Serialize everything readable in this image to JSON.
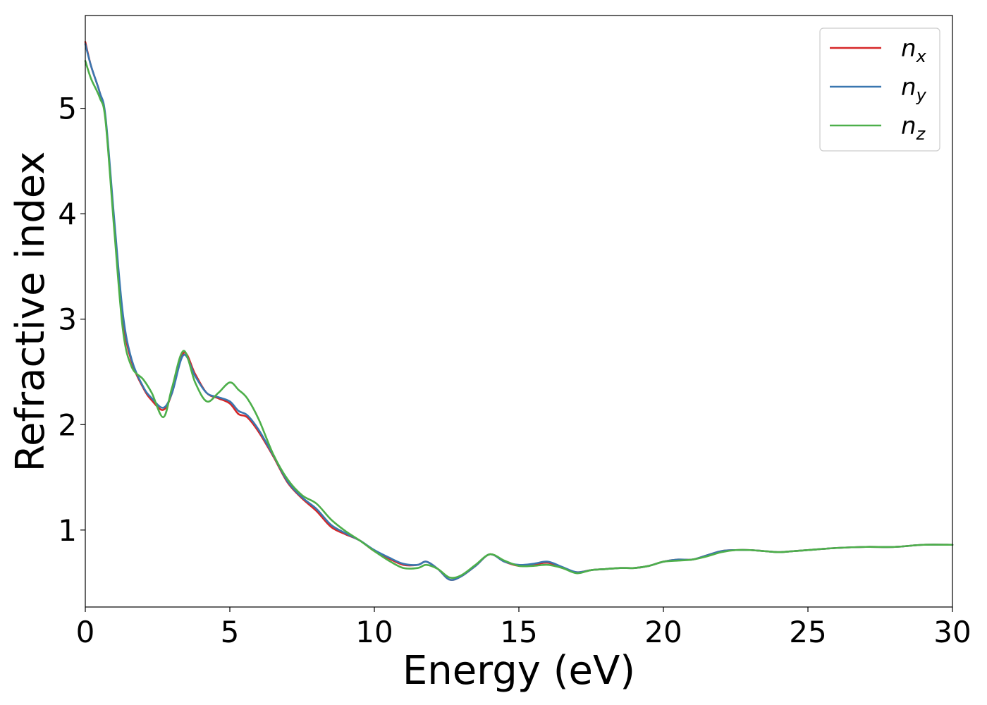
{
  "chart_data": {
    "type": "line",
    "title": "",
    "xlabel": "Energy (eV)",
    "ylabel": "Refractive index",
    "xlim": [
      0,
      30
    ],
    "ylim": [
      0.27,
      5.88
    ],
    "xticks": [
      0,
      5,
      10,
      15,
      20,
      25,
      30
    ],
    "yticks": [
      1,
      2,
      3,
      4,
      5
    ],
    "xtick_labels": [
      "0",
      "5",
      "10",
      "15",
      "20",
      "25",
      "30"
    ],
    "ytick_labels": [
      "1",
      "2",
      "3",
      "4",
      "5"
    ],
    "grid": false,
    "legend_position": "top-right",
    "series": [
      {
        "name": "n_x",
        "label_main": "n",
        "label_sub": "x",
        "color": "#d62728",
        "x": [
          0,
          0.2,
          0.5,
          0.7,
          1.0,
          1.3,
          1.6,
          2.0,
          2.3,
          2.7,
          3.0,
          3.4,
          3.8,
          4.2,
          4.6,
          5.0,
          5.3,
          5.6,
          6.0,
          6.5,
          7.0,
          7.5,
          8.0,
          8.5,
          9.0,
          9.5,
          10.0,
          10.5,
          11.0,
          11.5,
          11.8,
          12.2,
          12.6,
          13.0,
          13.5,
          14.0,
          14.5,
          15.0,
          15.5,
          16.0,
          16.5,
          17.0,
          17.5,
          18.0,
          18.5,
          19.0,
          19.5,
          20.0,
          20.5,
          21.0,
          21.5,
          22.0,
          22.5,
          23.0,
          23.5,
          24.0,
          24.5,
          25.0,
          26.0,
          27.0,
          28.0,
          29.0,
          30.0
        ],
        "y": [
          5.63,
          5.4,
          5.15,
          4.9,
          3.9,
          3.0,
          2.6,
          2.35,
          2.23,
          2.14,
          2.3,
          2.68,
          2.48,
          2.3,
          2.25,
          2.2,
          2.1,
          2.07,
          1.93,
          1.7,
          1.45,
          1.3,
          1.18,
          1.03,
          0.96,
          0.9,
          0.8,
          0.73,
          0.67,
          0.67,
          0.7,
          0.63,
          0.53,
          0.56,
          0.66,
          0.77,
          0.7,
          0.66,
          0.67,
          0.69,
          0.64,
          0.6,
          0.62,
          0.63,
          0.64,
          0.64,
          0.66,
          0.7,
          0.72,
          0.72,
          0.76,
          0.8,
          0.81,
          0.81,
          0.8,
          0.79,
          0.8,
          0.81,
          0.83,
          0.84,
          0.84,
          0.86,
          0.86
        ]
      },
      {
        "name": "n_y",
        "label_main": "n",
        "label_sub": "y",
        "color": "#3a77b0",
        "x": [
          0,
          0.2,
          0.5,
          0.7,
          1.0,
          1.3,
          1.6,
          2.0,
          2.3,
          2.7,
          3.0,
          3.4,
          3.8,
          4.2,
          4.6,
          5.0,
          5.3,
          5.6,
          6.0,
          6.5,
          7.0,
          7.5,
          8.0,
          8.5,
          9.0,
          9.5,
          10.0,
          10.5,
          11.0,
          11.5,
          11.8,
          12.2,
          12.6,
          13.0,
          13.5,
          14.0,
          14.5,
          15.0,
          15.5,
          16.0,
          16.5,
          17.0,
          17.5,
          18.0,
          18.5,
          19.0,
          19.5,
          20.0,
          20.5,
          21.0,
          21.5,
          22.0,
          22.5,
          23.0,
          23.5,
          24.0,
          24.5,
          25.0,
          26.0,
          27.0,
          28.0,
          29.0,
          30.0
        ],
        "y": [
          5.61,
          5.4,
          5.15,
          4.92,
          3.95,
          3.05,
          2.62,
          2.36,
          2.25,
          2.16,
          2.3,
          2.66,
          2.46,
          2.3,
          2.26,
          2.22,
          2.13,
          2.09,
          1.95,
          1.71,
          1.46,
          1.31,
          1.2,
          1.05,
          0.97,
          0.9,
          0.81,
          0.74,
          0.68,
          0.67,
          0.7,
          0.63,
          0.53,
          0.56,
          0.66,
          0.77,
          0.7,
          0.67,
          0.68,
          0.7,
          0.65,
          0.6,
          0.62,
          0.63,
          0.64,
          0.64,
          0.66,
          0.7,
          0.72,
          0.72,
          0.76,
          0.8,
          0.81,
          0.81,
          0.8,
          0.79,
          0.8,
          0.81,
          0.83,
          0.84,
          0.84,
          0.86,
          0.86
        ]
      },
      {
        "name": "n_z",
        "label_main": "n",
        "label_sub": "z",
        "color": "#4daf4a",
        "x": [
          0,
          0.2,
          0.5,
          0.7,
          1.0,
          1.3,
          1.6,
          2.0,
          2.3,
          2.7,
          3.0,
          3.4,
          3.8,
          4.2,
          4.6,
          5.0,
          5.3,
          5.6,
          6.0,
          6.5,
          7.0,
          7.5,
          8.0,
          8.5,
          9.0,
          9.5,
          10.0,
          10.5,
          11.0,
          11.5,
          11.8,
          12.2,
          12.6,
          13.0,
          13.5,
          14.0,
          14.5,
          15.0,
          15.5,
          16.0,
          16.5,
          17.0,
          17.5,
          18.0,
          18.5,
          19.0,
          19.5,
          20.0,
          20.5,
          21.0,
          21.5,
          22.0,
          22.5,
          23.0,
          23.5,
          24.0,
          24.5,
          25.0,
          26.0,
          27.0,
          28.0,
          29.0,
          30.0
        ],
        "y": [
          5.45,
          5.28,
          5.1,
          4.88,
          3.85,
          2.9,
          2.55,
          2.43,
          2.3,
          2.07,
          2.35,
          2.7,
          2.4,
          2.22,
          2.3,
          2.4,
          2.33,
          2.25,
          2.05,
          1.72,
          1.48,
          1.33,
          1.25,
          1.1,
          0.99,
          0.9,
          0.8,
          0.71,
          0.64,
          0.64,
          0.67,
          0.63,
          0.55,
          0.57,
          0.67,
          0.77,
          0.71,
          0.66,
          0.66,
          0.67,
          0.64,
          0.59,
          0.62,
          0.63,
          0.64,
          0.64,
          0.66,
          0.7,
          0.71,
          0.72,
          0.75,
          0.79,
          0.81,
          0.81,
          0.8,
          0.79,
          0.8,
          0.81,
          0.83,
          0.84,
          0.84,
          0.86,
          0.86
        ]
      }
    ]
  }
}
